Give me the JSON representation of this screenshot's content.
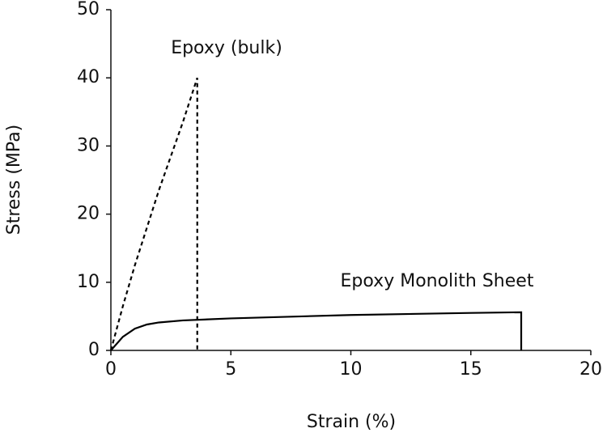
{
  "chart_data": {
    "type": "line",
    "x_label": "Strain (%)",
    "y_label": "Stress (MPa)",
    "xlim": [
      0,
      20
    ],
    "ylim": [
      0,
      50
    ],
    "xticks": [
      0,
      5,
      10,
      15,
      20
    ],
    "yticks": [
      0,
      10,
      20,
      30,
      40,
      50
    ],
    "grid": false,
    "series": [
      {
        "name": "Epoxy (bulk)",
        "color": "#000000",
        "dash": true,
        "x": [
          0,
          0.5,
          1,
          1.5,
          2,
          2.5,
          3,
          3.6,
          3.6
        ],
        "values": [
          0,
          6.5,
          12.5,
          18,
          23.5,
          28.5,
          33.5,
          40,
          0
        ]
      },
      {
        "name": "Epoxy Monolith Sheet",
        "color": "#000000",
        "dash": false,
        "x": [
          0,
          0.5,
          1,
          1.5,
          2,
          3,
          5,
          10,
          15,
          17.1,
          17.1
        ],
        "values": [
          0,
          2,
          3.2,
          3.8,
          4.1,
          4.4,
          4.7,
          5.2,
          5.5,
          5.6,
          0
        ]
      }
    ]
  }
}
